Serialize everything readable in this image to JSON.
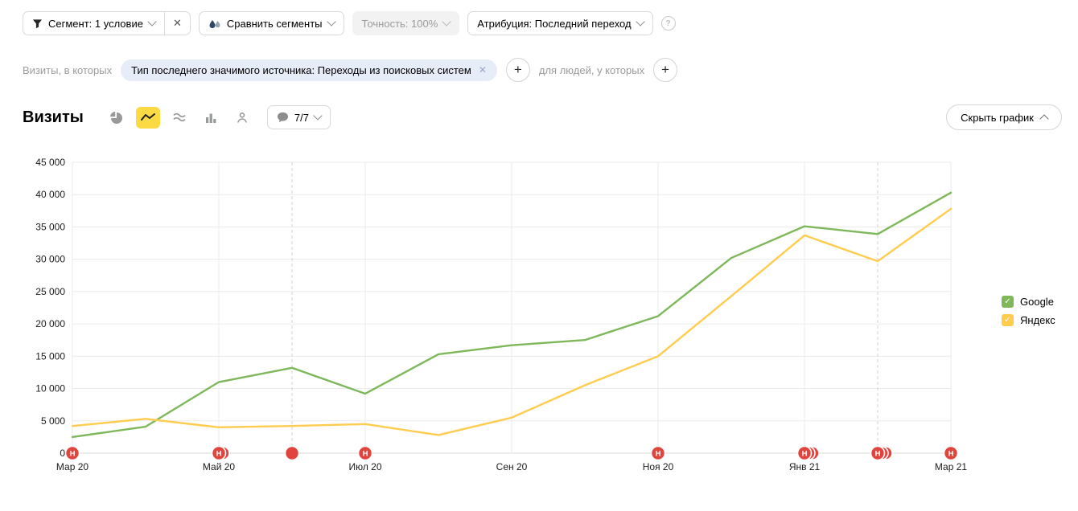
{
  "icons": {
    "close": "✕",
    "plus": "+",
    "question": "?",
    "check": "✓"
  },
  "icon_names": [
    "funnel-icon",
    "drops-icon",
    "question-icon",
    "pie-chart-icon",
    "line-chart-icon",
    "area-chart-icon",
    "bar-chart-icon",
    "person-icon",
    "comment-bubble-icon",
    "chevron-down-icon",
    "chevron-up-icon",
    "close-icon",
    "plus-icon",
    "check-icon"
  ],
  "colors": {
    "accent_yellow": "#fbda44",
    "chip_bg": "#e6ecf8"
  },
  "toolbar": {
    "segment_label": "Сегмент: 1 условие",
    "compare_label": "Сравнить сегменты",
    "accuracy_label": "Точность: 100%",
    "attribution_label": "Атрибуция: Последний переход"
  },
  "filters": {
    "visits_prefix": "Визиты, в которых",
    "chip_label": "Тип последнего значимого источника: Переходы из поисковых систем",
    "people_prefix": "для людей, у которых"
  },
  "section": {
    "title": "Визиты",
    "comments_count": "7/7",
    "hide_chart_label": "Скрыть график"
  },
  "chart_data": {
    "type": "line",
    "title": "Визиты",
    "categories": [
      "Мар 20",
      "Апр 20",
      "Май 20",
      "Июн 20",
      "Июл 20",
      "Авг 20",
      "Сен 20",
      "Окт 20",
      "Ноя 20",
      "Дек 20",
      "Янв 21",
      "Фев 21",
      "Мар 21"
    ],
    "x_tick_labels": [
      "Мар 20",
      "Май 20",
      "Июл 20",
      "Сен 20",
      "Ноя 20",
      "Янв 21",
      "Мар 21"
    ],
    "series": [
      {
        "name": "Google",
        "color": "#7eb85a",
        "values": [
          2500,
          4100,
          11000,
          13200,
          9200,
          15300,
          16700,
          17500,
          21200,
          30200,
          35100,
          33900,
          40300
        ]
      },
      {
        "name": "Яндекс",
        "color": "#ffcc4d",
        "values": [
          4200,
          5300,
          4000,
          4200,
          4500,
          2800,
          5500,
          10500,
          15000,
          24300,
          33700,
          29700,
          37800
        ]
      }
    ],
    "ylim": [
      0,
      45000
    ],
    "y_ticks": [
      0,
      5000,
      10000,
      15000,
      20000,
      25000,
      30000,
      35000,
      40000,
      45000
    ],
    "grid": true,
    "legend_position": "right",
    "legend": [
      "Google",
      "Яндекс"
    ],
    "dashed_gridlines": [
      "Июн 20",
      "Фев 21"
    ],
    "annotation_color": "#e0443c",
    "annotations": [
      {
        "category": "Мар 20",
        "label": "Н",
        "stack": 1
      },
      {
        "category": "Май 20",
        "label": "Н",
        "stack": 2
      },
      {
        "category": "Июн 20",
        "label": "",
        "stack": 1
      },
      {
        "category": "Июл 20",
        "label": "Н",
        "stack": 1
      },
      {
        "category": "Ноя 20",
        "label": "Н",
        "stack": 1
      },
      {
        "category": "Янв 21",
        "label": "Н",
        "stack": 3
      },
      {
        "category": "Фев 21",
        "label": "Н",
        "stack": 3
      },
      {
        "category": "Мар 21",
        "label": "Н",
        "stack": 1
      }
    ]
  }
}
